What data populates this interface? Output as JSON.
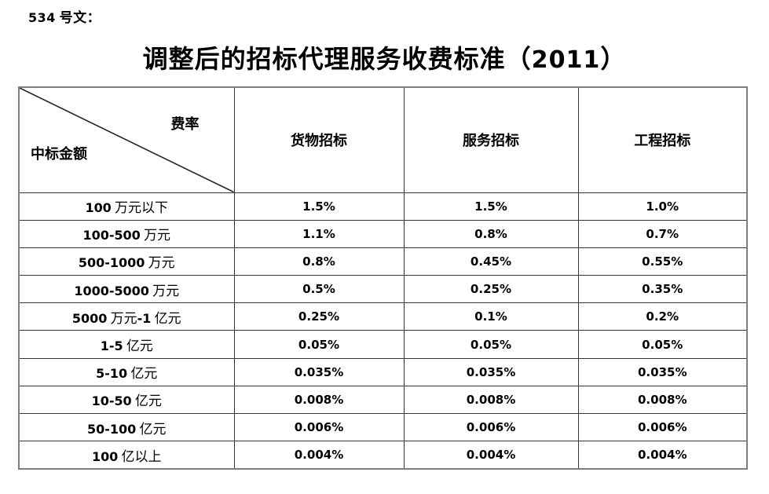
{
  "page": {
    "doc_label": "534 号文："
  },
  "title": "调整后的招标代理服务收费标准（2011）",
  "table": {
    "corner": {
      "top_right_label": "费率",
      "bottom_left_label": "中标金额"
    },
    "columns": [
      "货物招标",
      "服务招标",
      "工程招标"
    ],
    "rows": [
      {
        "label": "100 万元以下",
        "values": [
          "1.5%",
          "1.5%",
          "1.0%"
        ]
      },
      {
        "label": "100-500 万元",
        "values": [
          "1.1%",
          "0.8%",
          "0.7%"
        ]
      },
      {
        "label": "500-1000 万元",
        "values": [
          "0.8%",
          "0.45%",
          "0.55%"
        ]
      },
      {
        "label": "1000-5000 万元",
        "values": [
          "0.5%",
          "0.25%",
          "0.35%"
        ]
      },
      {
        "label": "5000 万元-1 亿元",
        "values": [
          "0.25%",
          "0.1%",
          "0.2%"
        ]
      },
      {
        "label": "1-5 亿元",
        "values": [
          "0.05%",
          "0.05%",
          "0.05%"
        ]
      },
      {
        "label": "5-10 亿元",
        "values": [
          "0.035%",
          "0.035%",
          "0.035%"
        ]
      },
      {
        "label": "10-50 亿元",
        "values": [
          "0.008%",
          "0.008%",
          "0.008%"
        ]
      },
      {
        "label": "50-100 亿元",
        "values": [
          "0.006%",
          "0.006%",
          "0.006%"
        ]
      },
      {
        "label": "100 亿以上",
        "values": [
          "0.004%",
          "0.004%",
          "0.004%"
        ]
      }
    ],
    "colors": {
      "grid_line": "#363636",
      "outer_border": "#7d7d7d",
      "text": "#000000"
    }
  }
}
